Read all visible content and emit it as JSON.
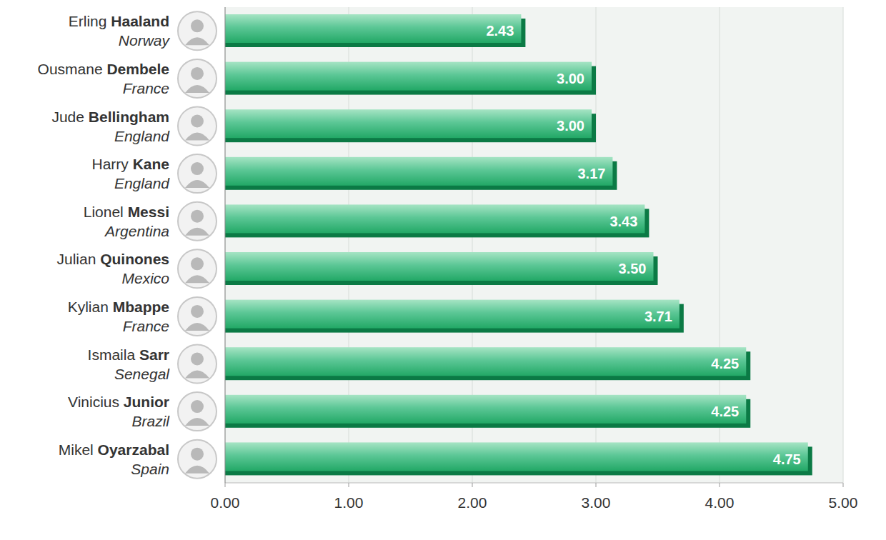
{
  "chart_data": {
    "type": "bar",
    "orientation": "horizontal",
    "categories": [
      "Erling Haaland",
      "Ousmane Dembele",
      "Jude Bellingham",
      "Harry Kane",
      "Lionel Messi",
      "Julian Quinones",
      "Kylian Mbappe",
      "Ismaila Sarr",
      "Vinicius Junior",
      "Mikel Oyarzabal"
    ],
    "countries": [
      "Norway",
      "France",
      "England",
      "England",
      "Argentina",
      "Mexico",
      "France",
      "Senegal",
      "Brazil",
      "Spain"
    ],
    "values": [
      2.43,
      3.0,
      3.0,
      3.17,
      3.43,
      3.5,
      3.71,
      4.25,
      4.25,
      4.75
    ],
    "value_labels": [
      "2.43",
      "3.00",
      "3.00",
      "3.17",
      "3.43",
      "3.50",
      "3.71",
      "4.25",
      "4.25",
      "4.75"
    ],
    "data_labels": true,
    "color": "#22a866",
    "xlim": [
      0,
      5
    ],
    "xticks": [
      {
        "value": 0,
        "label": "0.00"
      },
      {
        "value": 1,
        "label": "1.00"
      },
      {
        "value": 2,
        "label": "2.00"
      },
      {
        "value": 3,
        "label": "3.00"
      },
      {
        "value": 4,
        "label": "4.00"
      },
      {
        "value": 5,
        "label": "5.00"
      }
    ],
    "grid": true
  }
}
